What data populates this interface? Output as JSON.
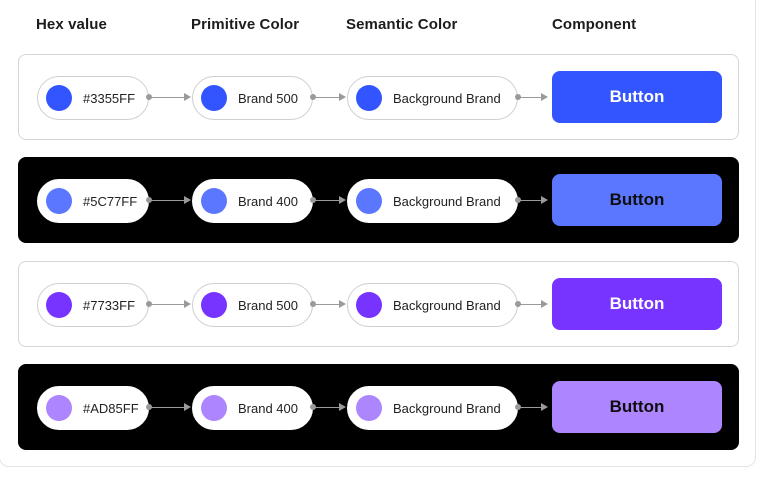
{
  "headers": {
    "hex": "Hex value",
    "primitive": "Primitive Color",
    "semantic": "Semantic Color",
    "component": "Component"
  },
  "rows": [
    {
      "theme": "light",
      "hex": "#3355FF",
      "primitive": "Brand 500",
      "semantic": "Background Brand",
      "button_label": "Button",
      "color": "#3355FF",
      "button_text_color": "#ffffff"
    },
    {
      "theme": "dark",
      "hex": "#5C77FF",
      "primitive": "Brand 400",
      "semantic": "Background Brand",
      "button_label": "Button",
      "color": "#5C77FF",
      "button_text_color": "#0d0d0d"
    },
    {
      "theme": "light",
      "hex": "#7733FF",
      "primitive": "Brand 500",
      "semantic": "Background Brand",
      "button_label": "Button",
      "color": "#7733FF",
      "button_text_color": "#ffffff"
    },
    {
      "theme": "dark",
      "hex": "#AD85FF",
      "primitive": "Brand 400",
      "semantic": "Background Brand",
      "button_label": "Button",
      "color": "#AD85FF",
      "button_text_color": "#0d0d0d"
    }
  ]
}
